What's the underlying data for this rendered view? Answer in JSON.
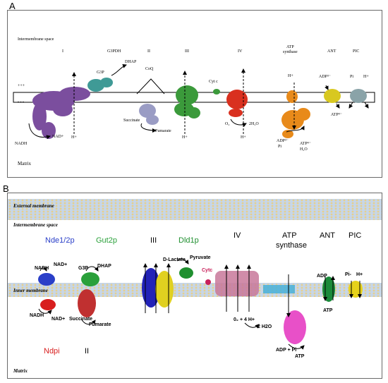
{
  "panelA": {
    "label": "A",
    "intermembrane": "Intermembrane space",
    "matrix": "Matrix",
    "plus": "+++",
    "minus": "- - -",
    "complexes": {
      "c1": "I",
      "g3pdh": "G3PDH",
      "c2": "II",
      "c3": "III",
      "c4": "IV",
      "atp_synthase_1": "ATP",
      "atp_synthase_2": "synthase",
      "ant": "ANT",
      "pic": "PIC"
    },
    "labels": {
      "g3p": "G3P",
      "dhap": "DHAP",
      "coq": "CoQ",
      "cytc": "Cyt c",
      "nadh": "NADH",
      "nadplus": "NAD+",
      "hplus1": "H+",
      "succinate": "Succinate",
      "fumarate": "Fumarate",
      "hplus3": "H+",
      "o2": "O₂",
      "hplus4": "H+",
      "h2o": "2H₂O",
      "hplus_atp": "H+",
      "adp_pi_1": "ADP³⁻",
      "adp_pi_2": "Pi",
      "atp_h2o_1": "ATP⁴⁻",
      "atp_h2o_2": "H₂O",
      "ant_adp": "ADP³⁻",
      "ant_atp": "ATP⁴⁻",
      "pic_pi": "Pi",
      "pic_h": "H+"
    }
  },
  "panelB": {
    "label": "B",
    "external": "External membrane",
    "intermembrane": "Intermembrane space",
    "inner": "Inner membrane",
    "matrix": "Matrix",
    "proteins": {
      "nde": "Nde1/2p",
      "gut2p": "Gut2p",
      "c3": "III",
      "dld1p": "Dld1p",
      "c4": "IV",
      "atp_synthase_1": "ATP",
      "atp_synthase_2": "synthase",
      "ant": "ANT",
      "pic": "PIC",
      "ndpi": "Ndpi",
      "c2": "II"
    },
    "labels": {
      "nadh_top": "NADH",
      "nadplus_top": "NAD+",
      "g3p": "G3P",
      "dhap": "DHAP",
      "dlactate": "D-Lactate",
      "pyruvate": "Pyruvate",
      "cytc": "Cytc",
      "nadh_bot": "NADH",
      "nadplus_bot": "NAD+",
      "succinate": "Succinate",
      "fumarate": "Fumarate",
      "o2": "0₂ + 4 H+",
      "h2o": "2 H2O",
      "adp_pi": "ADP + Pi",
      "atp": "ATP",
      "ant_adp": "ADP",
      "ant_atp": "ATP",
      "pic_pi": "Pi-",
      "pic_h": "H+"
    }
  },
  "colors": {
    "c1": "#7b4e9e",
    "g3pdh": "#3f9a96",
    "c2": "#9a9cc4",
    "c3": "#3b9a3b",
    "c4": "#d9301f",
    "atp": "#e88a1a",
    "ant": "#d8c820",
    "pic": "#8aa3a8",
    "nde": "#2a3fc8",
    "gut2p": "#2aa03a",
    "ndpi": "#d81e1e",
    "complex2b": "#c03030",
    "c3b_blue": "#2222b8",
    "c3b_yellow": "#e0d020",
    "dld1p": "#1f8f2f",
    "cytc": "#c8205a",
    "antb": "#1a8a3a",
    "picb": "#e6d21a",
    "membrane_blue": "#b7cbe0",
    "membrane_tan": "#e9d8a6"
  }
}
